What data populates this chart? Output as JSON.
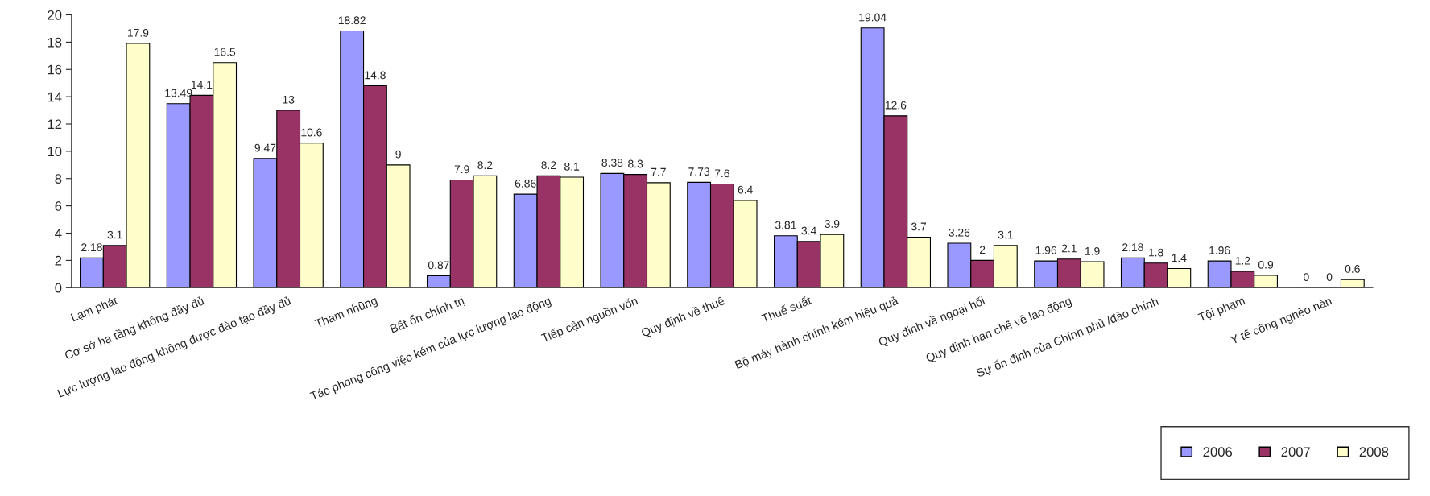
{
  "chart_data": {
    "type": "bar",
    "categories": [
      "Lạm phát",
      "Cơ sở hạ tầng không đầy đủ",
      "Lực lượng lao động không được đào tạo đầy đủ",
      "Tham nhũng",
      "Bất ổn chính trị",
      "Tác phong công việc kém của lực lượng lao động",
      "Tiếp cận nguồn vốn",
      "Quy định về thuế",
      "Thuế suất",
      "Bộ máy hành chính kém hiệu quả",
      "Quy định về ngoại hối",
      "Quy định hạn chế về lao động",
      "Sự ổn định của Chính phủ /đảo chính",
      "Tội phạm",
      "Y tế công nghèo nàn"
    ],
    "series": [
      {
        "name": "2006",
        "color": "#9999ff",
        "values": [
          2.18,
          13.49,
          9.47,
          18.82,
          0.87,
          6.86,
          8.38,
          7.73,
          3.81,
          19.04,
          3.26,
          1.96,
          2.18,
          1.96,
          0
        ]
      },
      {
        "name": "2007",
        "color": "#993366",
        "values": [
          3.1,
          14.1,
          13,
          14.8,
          7.9,
          8.2,
          8.3,
          7.6,
          3.4,
          12.6,
          2,
          2.1,
          1.8,
          1.2,
          0
        ]
      },
      {
        "name": "2008",
        "color": "#ffffcc",
        "values": [
          17.9,
          16.5,
          10.6,
          9,
          8.2,
          8.1,
          7.7,
          6.4,
          3.9,
          3.7,
          3.1,
          1.9,
          1.4,
          0.9,
          0.6
        ]
      }
    ],
    "ylim": [
      0,
      20
    ],
    "yticks": [
      0,
      2,
      4,
      6,
      8,
      10,
      12,
      14,
      16,
      18,
      20
    ],
    "data_labels": true,
    "grid": false,
    "legend": "bottom right"
  }
}
